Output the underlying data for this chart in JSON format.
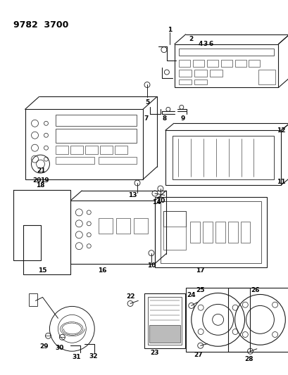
{
  "title": "9782  3700",
  "background_color": "#ffffff",
  "line_color": "#1a1a1a",
  "text_color": "#000000",
  "title_fontsize": 9,
  "label_fontsize": 6.5,
  "figsize": [
    4.1,
    5.33
  ],
  "dpi": 100
}
